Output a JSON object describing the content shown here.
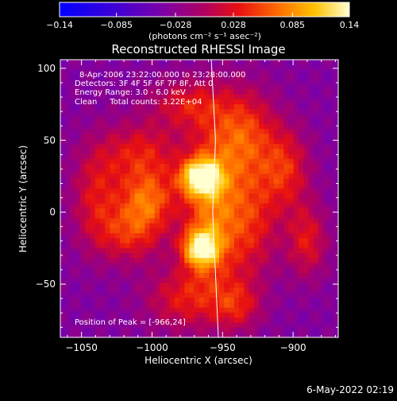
{
  "chart_data": {
    "type": "heatmap",
    "title": "Reconstructed RHESSI Image",
    "xlabel": "Heliocentric X (arcsec)",
    "ylabel": "Heliocentric Y (arcsec)",
    "xlim": [
      -1065,
      -868
    ],
    "ylim": [
      -87,
      106
    ],
    "x_ticks": [
      -1050,
      -1000,
      -950,
      -900
    ],
    "x_tick_labels": [
      "−1050",
      "−1000",
      "−950",
      "−900"
    ],
    "y_ticks": [
      -50,
      0,
      50,
      100
    ],
    "y_tick_labels": [
      "−50",
      "0",
      "50",
      "100"
    ],
    "colorbar": {
      "range": [
        -0.14,
        0.14
      ],
      "ticks": [
        -0.14,
        -0.085,
        -0.028,
        0.028,
        0.085,
        0.14
      ],
      "tick_labels": [
        "−0.14",
        "−0.085",
        "−0.028",
        "0.028",
        "0.085",
        "0.14"
      ],
      "label": "(photons cm⁻² s⁻¹ asec⁻²)"
    },
    "annotations": [
      "8-Apr-2006 23:22:00.000 to 23:28:00.000",
      "Detectors: 3F 4F 5F 6F 7F 8F, Att 0",
      "Energy Range: 3.0 - 6.0 keV",
      "Clean     Total counts: 3.22E+04"
    ],
    "peak_label": "Position of Peak = [-966,24]",
    "peak": [
      -966,
      24
    ],
    "sources": [
      {
        "x": -966,
        "y": 24,
        "amp": 0.14,
        "sx": 10,
        "sy": 9
      },
      {
        "x": -966,
        "y": -25,
        "amp": 0.13,
        "sx": 9,
        "sy": 9
      },
      {
        "x": -958,
        "y": 0,
        "amp": 0.1,
        "sx": 14,
        "sy": 40
      },
      {
        "x": -1003,
        "y": 8,
        "amp": 0.09,
        "sx": 14,
        "sy": 14
      },
      {
        "x": -1015,
        "y": -15,
        "amp": 0.07,
        "sx": 16,
        "sy": 14
      },
      {
        "x": -1008,
        "y": 40,
        "amp": 0.07,
        "sx": 20,
        "sy": 16
      },
      {
        "x": -935,
        "y": 55,
        "amp": 0.08,
        "sx": 16,
        "sy": 22
      },
      {
        "x": -930,
        "y": -5,
        "amp": 0.07,
        "sx": 14,
        "sy": 30
      },
      {
        "x": -905,
        "y": 30,
        "amp": 0.07,
        "sx": 12,
        "sy": 20
      },
      {
        "x": -890,
        "y": -20,
        "amp": 0.065,
        "sx": 10,
        "sy": 18
      },
      {
        "x": -1040,
        "y": 10,
        "amp": 0.06,
        "sx": 12,
        "sy": 25
      },
      {
        "x": -975,
        "y": 75,
        "amp": 0.06,
        "sx": 18,
        "sy": 12
      },
      {
        "x": -980,
        "y": -60,
        "amp": 0.06,
        "sx": 18,
        "sy": 15
      },
      {
        "x": -940,
        "y": -65,
        "amp": 0.06,
        "sx": 12,
        "sy": 12
      }
    ],
    "limb_line": [
      [
        -958,
        106
      ],
      [
        -955,
        50
      ],
      [
        -957,
        0
      ],
      [
        -953,
        -87
      ]
    ]
  },
  "footer": {
    "timestamp": "6-May-2022 02:19"
  }
}
